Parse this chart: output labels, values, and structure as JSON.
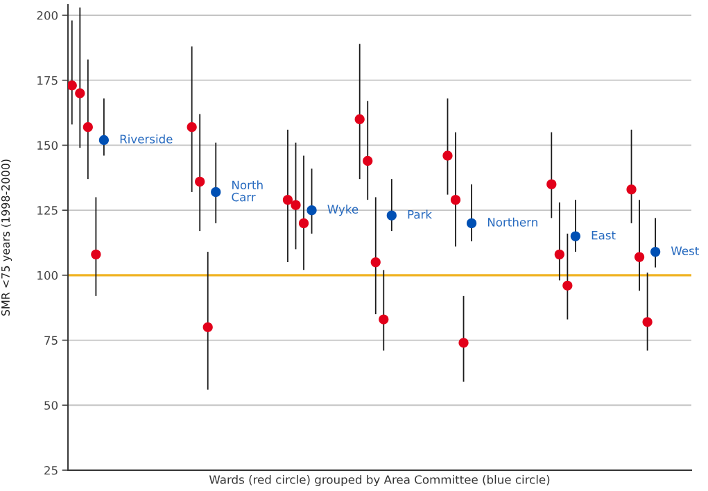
{
  "chart_data": {
    "type": "scatter",
    "xlabel": "Wards (red circle) grouped by Area Committee (blue circle)",
    "ylabel": "SMR <75 years (1998-2000)",
    "categories": [
      null,
      null,
      null,
      null,
      null,
      null,
      null,
      null,
      null,
      null,
      null,
      null,
      null,
      null,
      null,
      null,
      null,
      null,
      null,
      null,
      null,
      null,
      null,
      null,
      null,
      null,
      null,
      null,
      null,
      null,
      null,
      null,
      null,
      null,
      null,
      null,
      null,
      null,
      null,
      null,
      null,
      null,
      null,
      null,
      null,
      null,
      null,
      null,
      null,
      null,
      null,
      null,
      null,
      null,
      null,
      null,
      null,
      null,
      null,
      null,
      null,
      null,
      null,
      null,
      null,
      null,
      null,
      null,
      null,
      null,
      null,
      null,
      null,
      null,
      null,
      null,
      null,
      null
    ],
    "series": [
      {
        "color": "#e2001a",
        "values": [
          173,
          170,
          157,
          108,
          null,
          null,
          null,
          null,
          null,
          null,
          null,
          null,
          null,
          null,
          null,
          157,
          136,
          80,
          null,
          null,
          null,
          null,
          null,
          null,
          null,
          null,
          null,
          129,
          127,
          120,
          null,
          null,
          null,
          null,
          null,
          null,
          160,
          144,
          105,
          83,
          null,
          null,
          null,
          null,
          null,
          null,
          null,
          146,
          129,
          74,
          null,
          null,
          null,
          null,
          null,
          null,
          null,
          null,
          null,
          null,
          135,
          108,
          96,
          null,
          null,
          null,
          null,
          null,
          null,
          null,
          133,
          107,
          82,
          null,
          null,
          null,
          null,
          null
        ],
        "errors": [
          [
            158,
            198
          ],
          [
            149,
            203
          ],
          [
            137,
            183
          ],
          [
            92,
            130
          ],
          null,
          null,
          null,
          null,
          null,
          null,
          null,
          null,
          null,
          null,
          null,
          [
            132,
            188
          ],
          [
            117,
            162
          ],
          [
            56,
            109
          ],
          null,
          null,
          null,
          null,
          null,
          null,
          null,
          null,
          null,
          [
            105,
            156
          ],
          [
            110,
            151
          ],
          [
            102,
            146
          ],
          null,
          null,
          null,
          null,
          null,
          null,
          [
            137,
            189
          ],
          [
            129,
            167
          ],
          [
            85,
            130
          ],
          [
            71,
            102
          ],
          null,
          null,
          null,
          null,
          null,
          null,
          null,
          [
            131,
            168
          ],
          [
            111,
            155
          ],
          [
            59,
            92
          ],
          null,
          null,
          null,
          null,
          null,
          null,
          null,
          null,
          null,
          null,
          [
            122,
            155
          ],
          [
            98,
            128
          ],
          [
            83,
            116
          ],
          null,
          null,
          null,
          null,
          null,
          null,
          null,
          [
            120,
            156
          ],
          [
            94,
            129
          ],
          [
            71,
            101
          ],
          null,
          null,
          null,
          null,
          null
        ]
      },
      {
        "color": "#0050b4",
        "values": [
          null,
          null,
          null,
          null,
          152,
          null,
          null,
          null,
          null,
          null,
          null,
          null,
          null,
          null,
          null,
          null,
          null,
          null,
          132,
          null,
          null,
          null,
          null,
          null,
          null,
          null,
          null,
          null,
          null,
          null,
          125,
          null,
          null,
          null,
          null,
          null,
          null,
          null,
          null,
          null,
          123,
          null,
          null,
          null,
          null,
          null,
          null,
          null,
          null,
          null,
          120,
          null,
          null,
          null,
          null,
          null,
          null,
          null,
          null,
          null,
          null,
          null,
          null,
          115,
          null,
          null,
          null,
          null,
          null,
          null,
          null,
          null,
          null,
          109,
          null,
          null,
          null,
          null
        ],
        "errors": [
          null,
          null,
          null,
          null,
          [
            146,
            168
          ],
          null,
          null,
          null,
          null,
          null,
          null,
          null,
          null,
          null,
          null,
          null,
          null,
          null,
          [
            120,
            151
          ],
          null,
          null,
          null,
          null,
          null,
          null,
          null,
          null,
          null,
          null,
          null,
          [
            116,
            141
          ],
          null,
          null,
          null,
          null,
          null,
          null,
          null,
          null,
          null,
          [
            117,
            137
          ],
          null,
          null,
          null,
          null,
          null,
          null,
          null,
          null,
          null,
          [
            113,
            135
          ],
          null,
          null,
          null,
          null,
          null,
          null,
          null,
          null,
          null,
          null,
          null,
          null,
          [
            109,
            129
          ],
          null,
          null,
          null,
          null,
          null,
          null,
          null,
          null,
          null,
          [
            103,
            122
          ],
          null,
          null,
          null,
          null
        ],
        "value_labels": [
          null,
          null,
          null,
          null,
          "Riverside",
          null,
          null,
          null,
          null,
          null,
          null,
          null,
          null,
          null,
          null,
          null,
          null,
          null,
          "North\nCarr",
          null,
          null,
          null,
          null,
          null,
          null,
          null,
          null,
          null,
          null,
          null,
          "Wyke",
          null,
          null,
          null,
          null,
          null,
          null,
          null,
          null,
          null,
          "Park",
          null,
          null,
          null,
          null,
          null,
          null,
          null,
          null,
          null,
          "Northern",
          null,
          null,
          null,
          null,
          null,
          null,
          null,
          null,
          null,
          null,
          null,
          null,
          "East",
          null,
          null,
          null,
          null,
          null,
          null,
          null,
          null,
          null,
          "West",
          null,
          null,
          null,
          null
        ]
      }
    ],
    "ylim": [
      25,
      204
    ],
    "yticks": [
      25,
      50,
      75,
      100,
      125,
      150,
      175,
      200
    ],
    "ref_lines": [
      {
        "axis": "y",
        "value": 100,
        "color": "#f0b323"
      }
    ],
    "grid": "y",
    "marker": "circle",
    "tick_labels": "y"
  }
}
